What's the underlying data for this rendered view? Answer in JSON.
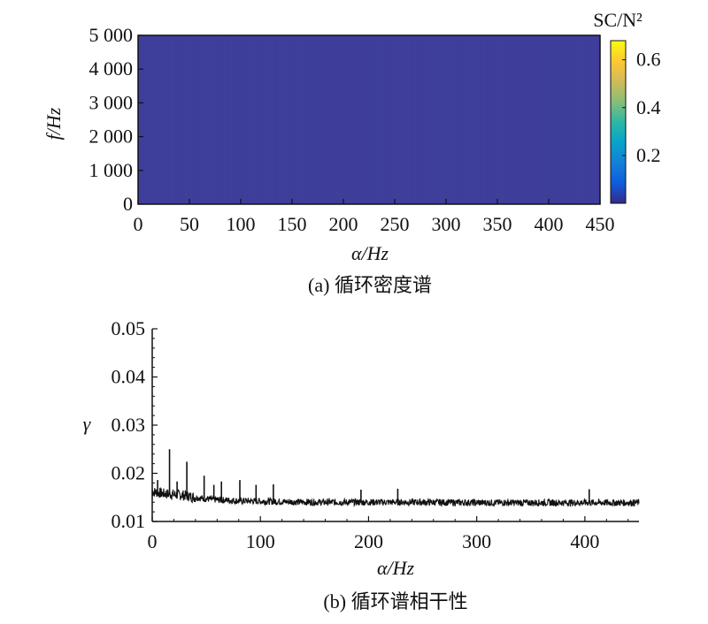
{
  "chart_data": [
    {
      "id": "a",
      "type": "heatmap",
      "caption": "(a) 循环密度谱",
      "xlabel": "α/Hz",
      "ylabel": "f/Hz",
      "xlim": [
        0,
        450
      ],
      "ylim": [
        0,
        5000
      ],
      "xticks": [
        0,
        50,
        100,
        150,
        200,
        250,
        300,
        350,
        400,
        450
      ],
      "yticks": [
        0,
        1000,
        2000,
        3000,
        4000,
        5000
      ],
      "ytick_labels": [
        "0",
        "1 000",
        "2 000",
        "3 000",
        "4 000",
        "5 000"
      ],
      "colorbar": {
        "title": "SC/N²",
        "range": [
          0,
          0.68
        ],
        "ticks": [
          0.2,
          0.4,
          0.6
        ],
        "colormap": "parula",
        "colors": [
          "#352a87",
          "#0f5cdd",
          "#1481d6",
          "#06a4ca",
          "#2eb7a4",
          "#87bf77",
          "#d1bb59",
          "#fec832",
          "#f9fb0e"
        ]
      },
      "field_value": 0.02,
      "field_color": "#3e3d9a"
    },
    {
      "id": "b",
      "type": "line",
      "caption": "(b) 循环谱相干性",
      "xlabel": "α/Hz",
      "ylabel": "γ",
      "xlim": [
        0,
        450
      ],
      "ylim": [
        0.01,
        0.05
      ],
      "xticks": [
        0,
        100,
        200,
        300,
        400
      ],
      "yticks": [
        0.01,
        0.02,
        0.03,
        0.04,
        0.05
      ],
      "ytick_labels": [
        "0.01",
        "0.02",
        "0.03",
        "0.04",
        "0.05"
      ],
      "series": [
        {
          "color": "#111111",
          "x": [
            0,
            5,
            10,
            15,
            20,
            25,
            30,
            40,
            50,
            60,
            80,
            100,
            120,
            150,
            200,
            250,
            300,
            350,
            400,
            450
          ],
          "y": [
            0.0162,
            0.016,
            0.0158,
            0.0157,
            0.0156,
            0.0155,
            0.0154,
            0.015,
            0.0147,
            0.0145,
            0.0143,
            0.0142,
            0.0141,
            0.014,
            0.014,
            0.014,
            0.0139,
            0.0139,
            0.0139,
            0.0139
          ],
          "peaks": [
            {
              "x": 5,
              "y": 0.0186
            },
            {
              "x": 16,
              "y": 0.025
            },
            {
              "x": 23,
              "y": 0.0183
            },
            {
              "x": 32,
              "y": 0.0224
            },
            {
              "x": 48,
              "y": 0.0195
            },
            {
              "x": 57,
              "y": 0.0176
            },
            {
              "x": 64,
              "y": 0.0183
            },
            {
              "x": 81,
              "y": 0.0186
            },
            {
              "x": 96,
              "y": 0.0176
            },
            {
              "x": 112,
              "y": 0.0177
            },
            {
              "x": 193,
              "y": 0.0166
            },
            {
              "x": 227,
              "y": 0.0168
            },
            {
              "x": 404,
              "y": 0.0167
            }
          ]
        }
      ]
    }
  ]
}
